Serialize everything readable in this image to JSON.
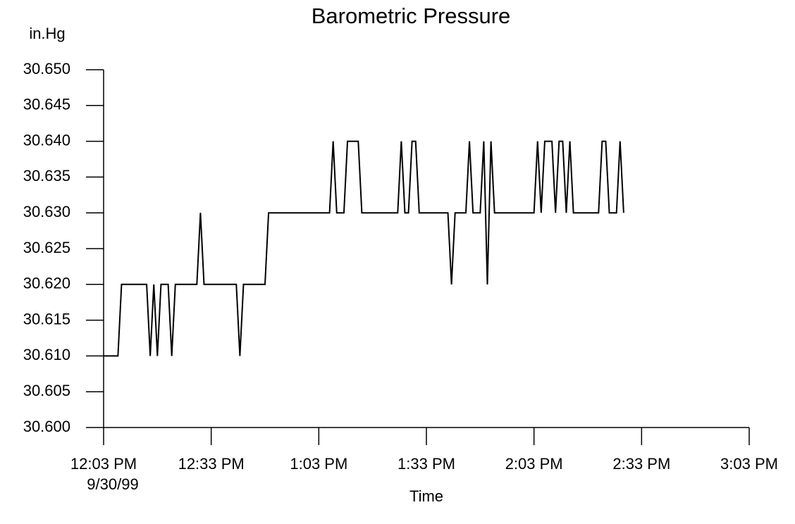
{
  "chart_data": {
    "type": "line",
    "title": "Barometric Pressure",
    "y_label": "in.Hg",
    "x_label": "Time",
    "x_date_label": "9/30/99",
    "color": "#000000",
    "title_color": "#0000ff",
    "x": [
      0,
      4,
      5,
      12,
      13,
      14,
      15,
      16,
      18,
      19,
      20,
      26,
      27,
      28,
      37,
      38,
      39,
      45,
      46,
      63,
      64,
      65,
      67,
      68,
      71,
      72,
      82,
      83,
      84,
      85,
      86,
      87,
      88,
      96,
      97,
      98,
      101,
      102,
      103,
      105,
      106,
      107,
      108,
      109,
      120,
      121,
      122,
      123,
      125,
      126,
      127,
      128,
      129,
      130,
      131,
      138,
      139,
      140,
      141,
      143,
      144,
      145
    ],
    "values": [
      30.61,
      30.61,
      30.62,
      30.62,
      30.61,
      30.62,
      30.61,
      30.62,
      30.62,
      30.61,
      30.62,
      30.62,
      30.63,
      30.62,
      30.62,
      30.61,
      30.62,
      30.62,
      30.63,
      30.63,
      30.64,
      30.63,
      30.63,
      30.64,
      30.64,
      30.63,
      30.63,
      30.64,
      30.63,
      30.63,
      30.64,
      30.64,
      30.63,
      30.63,
      30.62,
      30.63,
      30.63,
      30.64,
      30.63,
      30.63,
      30.64,
      30.62,
      30.64,
      30.63,
      30.63,
      30.64,
      30.63,
      30.64,
      30.64,
      30.63,
      30.64,
      30.64,
      30.63,
      30.64,
      30.63,
      30.63,
      30.64,
      30.64,
      30.63,
      30.63,
      30.64,
      30.63
    ],
    "xlim": [
      0,
      180
    ],
    "xticks": [
      {
        "value": 0,
        "label": "12:03 PM"
      },
      {
        "value": 30,
        "label": "12:33 PM"
      },
      {
        "value": 60,
        "label": "1:03 PM"
      },
      {
        "value": 90,
        "label": "1:33 PM"
      },
      {
        "value": 120,
        "label": "2:03 PM"
      },
      {
        "value": 150,
        "label": "2:33 PM"
      },
      {
        "value": 180,
        "label": "3:03 PM"
      }
    ],
    "ylim": [
      30.6,
      30.65
    ],
    "yticks": [
      {
        "value": 30.6,
        "label": "30.600"
      },
      30.605,
      {
        "value": 30.61,
        "label": "30.610"
      },
      30.615,
      {
        "value": 30.62,
        "label": "30.620"
      },
      30.625,
      {
        "value": 30.63,
        "label": "30.630"
      },
      30.635,
      {
        "value": 30.64,
        "label": "30.640"
      },
      30.645,
      {
        "value": 30.65,
        "label": "30.650"
      }
    ],
    "grid": false
  }
}
